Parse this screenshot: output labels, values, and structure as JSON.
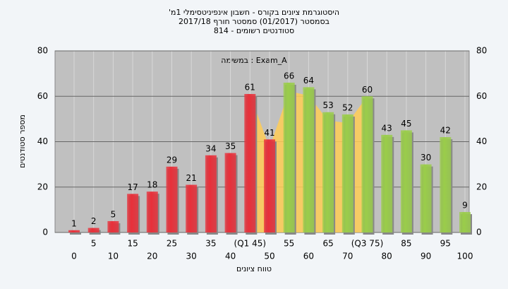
{
  "chart_data": {
    "type": "bar",
    "title": "היסטוגרמת ציונים בקורס - חשבון אינפיניטסימלי 1מ'",
    "subtitle": "בסמסטר  (01/2017)  סמסטר חורף 2017/18",
    "subtitle2": "סטודנטים רשומים - 814",
    "annotation": "Exam_A : במשימה",
    "ylabel": "מספר סטודנטים",
    "xlabel": "טווח ציונים",
    "categories": [
      "0",
      "5",
      "10",
      "15",
      "20",
      "25",
      "30",
      "35",
      "40",
      "(Q1 45)",
      "50",
      "55",
      "60",
      "65",
      "70",
      "(Q3 75)",
      "80",
      "85",
      "90",
      "95",
      "100"
    ],
    "values": [
      1,
      2,
      5,
      17,
      18,
      29,
      21,
      34,
      35,
      61,
      41,
      66,
      64,
      53,
      52,
      60,
      43,
      45,
      30,
      42,
      9
    ],
    "colors": [
      "#e8303a",
      "#e8303a",
      "#e8303a",
      "#e8303a",
      "#e8303a",
      "#e8303a",
      "#e8303a",
      "#e8303a",
      "#e8303a",
      "#e8303a",
      "#e8303a",
      "#9acd4a",
      "#9acd4a",
      "#9acd4a",
      "#9acd4a",
      "#9acd4a",
      "#9acd4a",
      "#9acd4a",
      "#9acd4a",
      "#9acd4a",
      "#9acd4a"
    ],
    "highlight_color": "#ffcc55",
    "ylim": [
      0,
      80
    ],
    "yticks": [
      0,
      20,
      40,
      60,
      80
    ],
    "grid": true
  }
}
